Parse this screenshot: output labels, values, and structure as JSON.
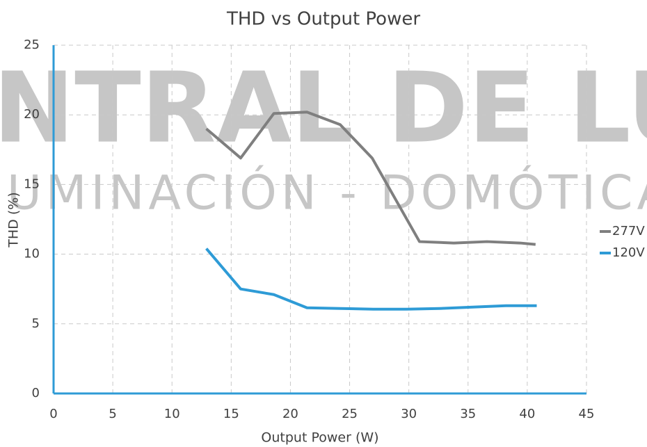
{
  "chart_data": {
    "type": "line",
    "title": "THD vs Output Power",
    "xlabel": "Output Power (W)",
    "ylabel": "THD (%)",
    "watermark": [
      "NTRAL DE LU",
      "UMINACIÓN - DOMÓTICA"
    ],
    "series": [
      {
        "name": "277V",
        "color": "#7f7f7f",
        "x": [
          12.9,
          15.8,
          18.6,
          21.4,
          24.2,
          26.9,
          30.9,
          33.8,
          36.6,
          39.4,
          40.7
        ],
        "values": [
          19.0,
          16.9,
          20.1,
          20.2,
          19.3,
          16.9,
          10.9,
          10.8,
          10.9,
          10.8,
          10.7
        ]
      },
      {
        "name": "120V",
        "color": "#2e9bd6",
        "x": [
          12.9,
          15.8,
          18.6,
          21.4,
          24.2,
          27.0,
          29.8,
          32.6,
          35.4,
          38.2,
          40.8
        ],
        "values": [
          10.4,
          7.5,
          7.1,
          6.15,
          6.1,
          6.05,
          6.05,
          6.1,
          6.2,
          6.3,
          6.3
        ]
      }
    ],
    "xlim": [
      0,
      45
    ],
    "xticks": [
      0,
      5,
      10,
      15,
      20,
      25,
      30,
      35,
      40,
      45
    ],
    "ylim": [
      0,
      25
    ],
    "yticks": [
      0,
      5,
      10,
      15,
      20,
      25
    ],
    "grid": true,
    "legend": "right"
  }
}
